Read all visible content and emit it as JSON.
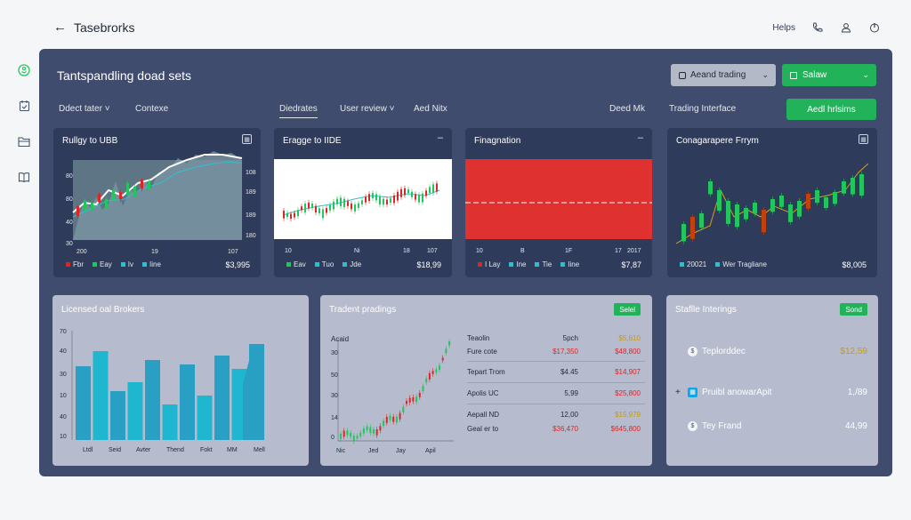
{
  "header": {
    "back_label": "Tasebrorks",
    "helps_label": "Helps"
  },
  "icons": {
    "back": "arrow-left-icon",
    "phone": "phone-icon",
    "user": "user-icon",
    "power": "power-icon",
    "rail": [
      "dollar-circle-icon",
      "calendar-icon",
      "folder-icon",
      "book-icon"
    ]
  },
  "panel": {
    "title": "Tantspandling doad sets",
    "select_grey": "Aeand trading",
    "select_green": "Salaw",
    "nav": {
      "left1": "Ddect tater",
      "left2": "Contexe",
      "tab1": "Diedrates",
      "tab2": "User review",
      "tab3": "Aed Nitx",
      "right1": "Deed Mk",
      "right2": "Trading Interface"
    },
    "action_button": "Aedl hrlsims"
  },
  "cards": [
    {
      "title": "Rullgy to UBB",
      "y_left": [
        "80",
        "80",
        "40",
        "30"
      ],
      "y_right": [
        "108",
        "189",
        "189",
        "180"
      ],
      "x_ticks": [
        "200",
        "19",
        "107"
      ],
      "legend": [
        "Fbr",
        "Eay",
        "Iv",
        "Iine"
      ],
      "price": "$3,995"
    },
    {
      "title": "Eragge to IIDE",
      "x_ticks": [
        "10",
        "Ni",
        "18",
        "107"
      ],
      "legend": [
        "Eav",
        "Tuo",
        "Jde"
      ],
      "price": "$18,99"
    },
    {
      "title": "Finagnation",
      "x_ticks": [
        "10",
        "B",
        "1F",
        "17",
        "2017"
      ],
      "legend": [
        "I Lay",
        "Ine",
        "Tie",
        "Iine"
      ],
      "price": "$7,87"
    },
    {
      "title": "Conagarapere Frrym",
      "legend": [
        "20021",
        "Wer Tragliane"
      ],
      "price": "$8,005"
    }
  ],
  "bottom": {
    "left": {
      "title": "Licensed oal Brokers",
      "y_ticks": [
        "70",
        "40",
        "30",
        "10",
        "40",
        "10"
      ],
      "x_labels": [
        "Ltdl",
        "Seid",
        "Avter",
        "Thend",
        "Fokt",
        "MM",
        "Mell"
      ]
    },
    "middle": {
      "title": "Tradent pradings",
      "badge": "Selel",
      "y_ticks": [
        "Acaid",
        "30",
        "50",
        "30",
        "14",
        "0"
      ],
      "x_labels": [
        "Nic",
        "Jed",
        "Jay",
        "Apil"
      ],
      "rows": [
        {
          "name": "Teaolin",
          "v1": "5pch",
          "v2": "$5,610"
        },
        {
          "name": "Fure cote",
          "v1": "$17,350",
          "v2": "$48,800"
        },
        {
          "name": "Tepart Trom",
          "v1": "$4.45",
          "v2": "$14,907"
        },
        {
          "name": "Apolis UC",
          "v1": "5,99",
          "v2": "$25,800"
        },
        {
          "name": "Aepall ND",
          "v1": "12,00",
          "v2": "$15,979"
        },
        {
          "name": "Geal er to",
          "v1": "$36,470",
          "v2": "$645,800"
        }
      ]
    },
    "right": {
      "title": "Staflle Interings",
      "badge": "Sond",
      "items": [
        {
          "label": "Teplorddec",
          "value": "$12,59"
        },
        {
          "label": "Pruibl anowarApit",
          "value": "1,/89"
        },
        {
          "label": "Tey Frand",
          "value": "44,99"
        }
      ]
    }
  },
  "colors": {
    "panel": "#3f4c6e",
    "card": "#2f3b5a",
    "light_card": "#b6bccd",
    "green": "#21b25a",
    "red": "#dc2626",
    "teal": "#2cc0cf"
  }
}
